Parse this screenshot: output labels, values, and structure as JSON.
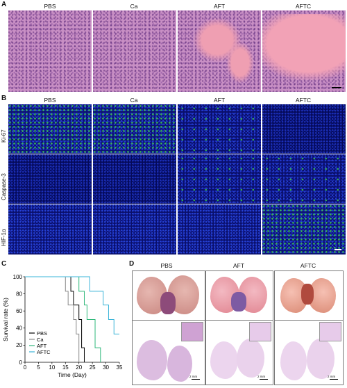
{
  "panel_a": {
    "letter": "A",
    "columns": [
      "PBS",
      "Ca",
      "AFT",
      "AFTC"
    ]
  },
  "panel_b": {
    "letter": "B",
    "columns": [
      "PBS",
      "Ca",
      "AFT",
      "AFTC"
    ],
    "rows": [
      "Ki-67",
      "Caspase-3",
      "HIF-1α"
    ]
  },
  "panel_c": {
    "letter": "C"
  },
  "panel_d": {
    "letter": "D",
    "columns": [
      "PBS",
      "AFT",
      "AFTC"
    ],
    "scale_text": "2 mm"
  },
  "colors": {
    "PBS": "#000000",
    "Ca": "#8a8a8a",
    "AFT": "#2fb87a",
    "AFTC": "#3ab4d8"
  },
  "chart_data": {
    "type": "line",
    "step": true,
    "xlabel": "Time (Day)",
    "ylabel": "Survival rate (%)",
    "xlim": [
      0,
      35
    ],
    "ylim": [
      0,
      100
    ],
    "xticks": [
      0,
      5,
      10,
      15,
      20,
      25,
      30,
      35
    ],
    "yticks": [
      0,
      20,
      40,
      60,
      80,
      100
    ],
    "legend_position": "bottom-left",
    "series": [
      {
        "name": "PBS",
        "color": "#000000",
        "x": [
          0,
          17,
          18,
          20,
          21,
          22
        ],
        "y": [
          100,
          83,
          67,
          50,
          17,
          0
        ]
      },
      {
        "name": "Ca",
        "color": "#8a8a8a",
        "x": [
          0,
          15,
          16,
          18,
          19,
          20
        ],
        "y": [
          100,
          83,
          67,
          50,
          33,
          0
        ]
      },
      {
        "name": "AFT",
        "color": "#2fb87a",
        "x": [
          0,
          20,
          22,
          23,
          26,
          28
        ],
        "y": [
          100,
          83,
          67,
          50,
          17,
          0
        ]
      },
      {
        "name": "AFTC",
        "color": "#3ab4d8",
        "x": [
          0,
          24,
          29,
          31,
          33,
          35
        ],
        "y": [
          100,
          83,
          67,
          50,
          33,
          33
        ]
      }
    ]
  }
}
